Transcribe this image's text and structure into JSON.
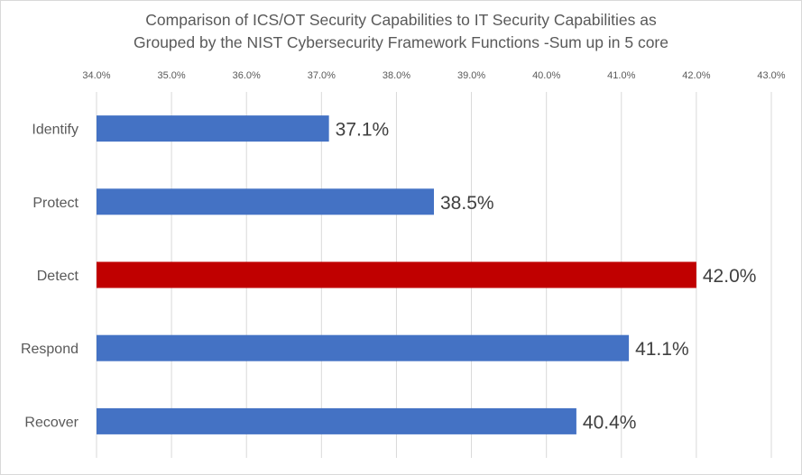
{
  "chart_data": {
    "type": "bar",
    "orientation": "horizontal",
    "title": "Comparison of ICS/OT Security Capabilities to IT Security Capabilities as Grouped by the NIST Cybersecurity Framework Functions -Sum up in 5 core",
    "title_lines": [
      "Comparison of ICS/OT Security Capabilities to IT Security Capabilities as",
      "Grouped by the NIST Cybersecurity Framework Functions -Sum up in 5 core"
    ],
    "xlabel": "",
    "ylabel": "",
    "categories": [
      "Identify",
      "Protect",
      "Detect",
      "Respond",
      "Recover"
    ],
    "values": [
      37.1,
      38.5,
      42.0,
      41.1,
      40.4
    ],
    "data_labels": [
      "37.1%",
      "38.5%",
      "42.0%",
      "41.1%",
      "40.4%"
    ],
    "bar_colors": [
      "#4472c4",
      "#4472c4",
      "#c00000",
      "#4472c4",
      "#4472c4"
    ],
    "xlim": [
      34.0,
      43.0
    ],
    "x_ticks": [
      34,
      35,
      36,
      37,
      38,
      39,
      40,
      41,
      42,
      43
    ],
    "x_tick_labels": [
      "34.0%",
      "35.0%",
      "36.0%",
      "37.0%",
      "38.0%",
      "39.0%",
      "40.0%",
      "41.0%",
      "42.0%",
      "43.0%"
    ],
    "x_axis_position": "top",
    "grid": true,
    "legend": "none"
  }
}
